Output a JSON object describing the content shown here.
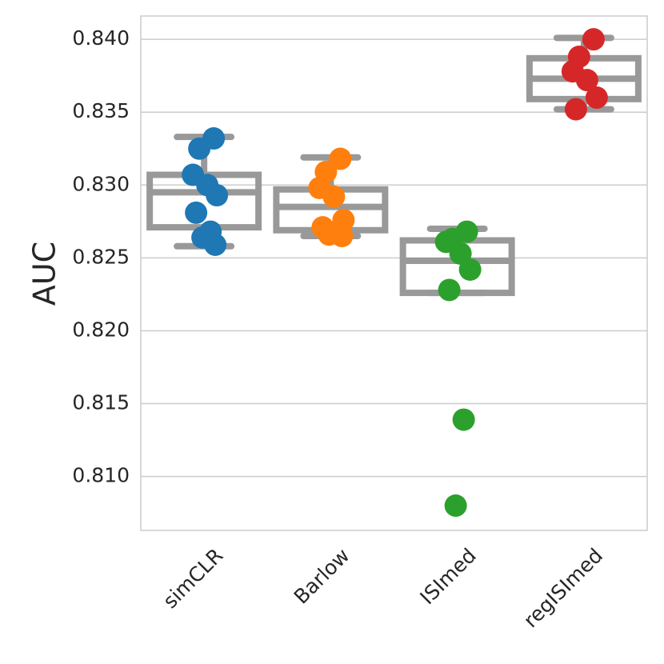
{
  "chart_data": {
    "type": "box",
    "title": "",
    "xlabel": "",
    "ylabel": "AUC",
    "ylim": [
      0.8063,
      0.8416
    ],
    "yticks": [
      0.81,
      0.815,
      0.82,
      0.825,
      0.83,
      0.835,
      0.84
    ],
    "ytick_labels": [
      "0.810",
      "0.815",
      "0.820",
      "0.825",
      "0.830",
      "0.835",
      "0.840"
    ],
    "grid": true,
    "categories": [
      "simCLR",
      "Barlow",
      "ISImed",
      "regISImed"
    ],
    "box_color": "#999999",
    "series": [
      {
        "category": "simCLR",
        "color": "#1f77b4",
        "points": [
          0.8332,
          0.8325,
          0.8307,
          0.83,
          0.8293,
          0.8281,
          0.8268,
          0.8264,
          0.8259
        ],
        "box": {
          "whisker_low": 0.8258,
          "q1": 0.8271,
          "median": 0.8295,
          "q3": 0.8307,
          "whisker_high": 0.8333
        }
      },
      {
        "category": "Barlow",
        "color": "#ff7f0e",
        "points": [
          0.8318,
          0.8309,
          0.8298,
          0.8292,
          0.8276,
          0.8271,
          0.8268,
          0.8266,
          0.8265
        ],
        "box": {
          "whisker_low": 0.8265,
          "q1": 0.8269,
          "median": 0.8285,
          "q3": 0.8297,
          "whisker_high": 0.8319
        }
      },
      {
        "category": "ISImed",
        "color": "#2ca02c",
        "points": [
          0.8268,
          0.8263,
          0.8261,
          0.8253,
          0.8242,
          0.8228,
          0.8139,
          0.808
        ],
        "box": {
          "whisker_low": 0.8226,
          "q1": 0.8226,
          "median": 0.8248,
          "q3": 0.8262,
          "whisker_high": 0.827
        }
      },
      {
        "category": "regISImed",
        "color": "#d62728",
        "points": [
          0.84,
          0.8388,
          0.8378,
          0.8372,
          0.836,
          0.8352
        ],
        "box": {
          "whisker_low": 0.8352,
          "q1": 0.8359,
          "median": 0.8373,
          "q3": 0.8387,
          "whisker_high": 0.8401
        }
      }
    ]
  }
}
